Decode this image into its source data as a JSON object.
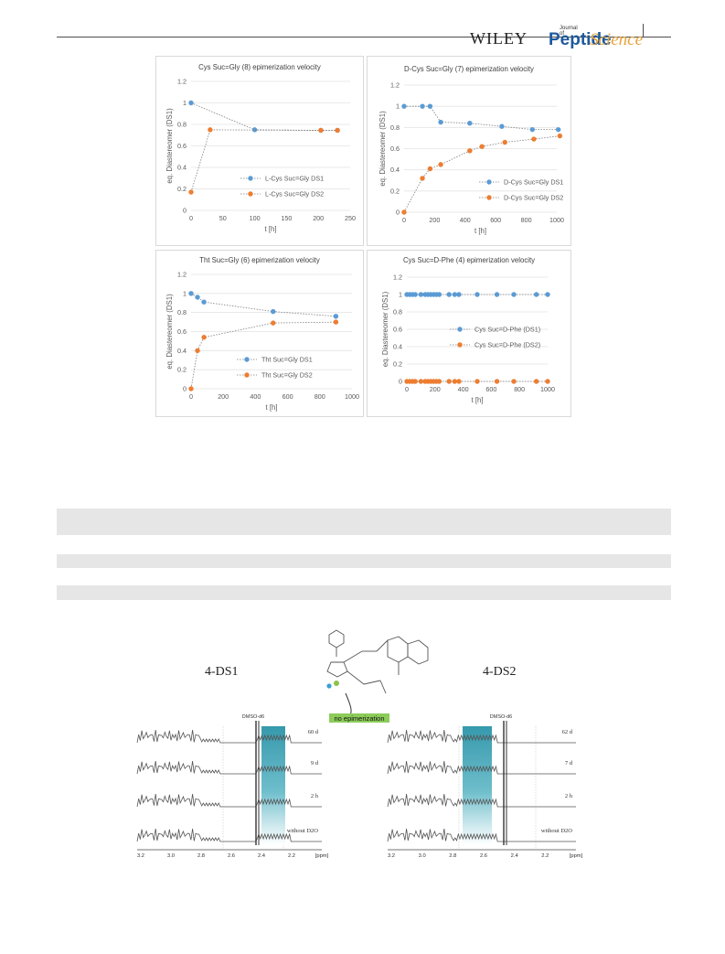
{
  "header": {
    "brand": "WILEY",
    "journal_of": "Journal of",
    "journal_a": "Peptide",
    "journal_b": "Science"
  },
  "chart_data": [
    {
      "type": "scatter",
      "title": "Cys Suc=Gly (8) epimerization velocity",
      "xlabel": "t [h]",
      "ylabel": "eq. Diastereomer (DS1)",
      "xlim": [
        0,
        250
      ],
      "ylim": [
        0,
        1.2
      ],
      "xticks": [
        "0",
        "50",
        "100",
        "150",
        "200",
        "250"
      ],
      "yticks": [
        "0",
        "0.2",
        "0.4",
        "0.6",
        "0.8",
        "1",
        "1.2"
      ],
      "legend": "center-right",
      "series": [
        {
          "name": "L-Cys Suc=Gly DS1",
          "color": "#5b9bd5",
          "x": [
            0,
            100,
            204,
            230
          ],
          "y": [
            1.0,
            0.75,
            0.745,
            0.745
          ]
        },
        {
          "name": "L-Cys Suc=Gly DS2",
          "color": "#ed7d31",
          "x": [
            0,
            30,
            204,
            230
          ],
          "y": [
            0.17,
            0.75,
            0.745,
            0.745
          ]
        }
      ]
    },
    {
      "type": "scatter",
      "title": "D-Cys Suc=Gly (7) epimerization velocity",
      "xlabel": "t [h]",
      "ylabel": "eq. Diastereomer (DS1)",
      "xlim": [
        0,
        1000
      ],
      "ylim": [
        0,
        1.2
      ],
      "xticks": [
        "0",
        "200",
        "400",
        "600",
        "800",
        "1000"
      ],
      "yticks": [
        "0",
        "0.2",
        "0.4",
        "0.6",
        "0.8",
        "1",
        "1.2"
      ],
      "legend": "bottom-right",
      "series": [
        {
          "name": "D-Cys Suc=Gly DS1",
          "color": "#5b9bd5",
          "x": [
            0,
            120,
            170,
            240,
            430,
            640,
            840,
            1010
          ],
          "y": [
            1.0,
            1.0,
            1.0,
            0.85,
            0.84,
            0.81,
            0.78,
            0.78
          ]
        },
        {
          "name": "D-Cys Suc=Gly DS2",
          "color": "#ed7d31",
          "x": [
            0,
            120,
            170,
            240,
            430,
            510,
            660,
            850,
            1020
          ],
          "y": [
            0.0,
            0.32,
            0.41,
            0.45,
            0.58,
            0.62,
            0.66,
            0.69,
            0.72
          ]
        }
      ]
    },
    {
      "type": "scatter",
      "title": "Tht Suc=Gly (6) epimerization velocity",
      "xlabel": "t [h]",
      "ylabel": "eq. Diastereomer (DS1)",
      "xlim": [
        0,
        1000
      ],
      "ylim": [
        0,
        1.2
      ],
      "xticks": [
        "0",
        "200",
        "400",
        "600",
        "800",
        "1000"
      ],
      "yticks": [
        "0",
        "0.2",
        "0.4",
        "0.6",
        "0.8",
        "1",
        "1.2"
      ],
      "legend": "bottom-center",
      "series": [
        {
          "name": "Tht Suc=Gly DS1",
          "color": "#5b9bd5",
          "x": [
            0,
            40,
            80,
            510,
            900
          ],
          "y": [
            1.0,
            0.96,
            0.91,
            0.81,
            0.76
          ]
        },
        {
          "name": "Tht Suc=Gly DS2",
          "color": "#ed7d31",
          "x": [
            0,
            40,
            80,
            510,
            900
          ],
          "y": [
            0.0,
            0.4,
            0.54,
            0.69,
            0.7
          ]
        }
      ]
    },
    {
      "type": "scatter",
      "title": "Cys Suc=D-Phe (4) epimerization velocity",
      "xlabel": "t [h]",
      "ylabel": "eq. Diastereomer (DS1)",
      "xlim": [
        0,
        1000
      ],
      "ylim": [
        0,
        1.2
      ],
      "xticks": [
        "0",
        "200",
        "400",
        "600",
        "800",
        "1000"
      ],
      "yticks": [
        "0",
        "0.2",
        "0.4",
        "0.6",
        "0.8",
        "1",
        "1.2"
      ],
      "legend": "center-right",
      "series": [
        {
          "name": "Cys Suc=D-Phe (DS1)",
          "color": "#5b9bd5",
          "x": [
            0,
            20,
            40,
            60,
            100,
            130,
            150,
            170,
            190,
            210,
            230,
            300,
            340,
            370,
            500,
            640,
            760,
            920,
            1000
          ],
          "y": [
            1,
            1,
            1,
            1,
            1,
            1,
            1,
            1,
            1,
            1,
            1,
            1,
            1,
            1,
            1,
            1,
            1,
            1,
            1
          ]
        },
        {
          "name": "Cys Suc=D-Phe (DS2)",
          "color": "#ed7d31",
          "x": [
            0,
            20,
            40,
            60,
            100,
            130,
            150,
            170,
            190,
            210,
            230,
            300,
            340,
            370,
            500,
            640,
            760,
            920,
            1000
          ],
          "y": [
            0,
            0,
            0,
            0,
            0,
            0,
            0,
            0,
            0,
            0,
            0,
            0,
            0,
            0,
            0,
            0,
            0,
            0,
            0
          ]
        }
      ]
    }
  ],
  "nmr": {
    "left_label": "4-DS1",
    "right_label": "4-DS2",
    "solvent": "DMSO-d6",
    "annotation": "no epimerization",
    "left_traces": [
      "60 d",
      "9 d",
      "2 h",
      "without D2O"
    ],
    "right_traces": [
      "62 d",
      "7 d",
      "2 h",
      "without D2O"
    ],
    "left_axis": [
      "3.2",
      "3.0",
      "2.8",
      "2.6",
      "2.4",
      "2.2",
      "[ppm]"
    ],
    "right_axis": [
      "3.2",
      "3.0",
      "2.8",
      "2.6",
      "2.4",
      "2.2",
      "[ppm]"
    ]
  }
}
